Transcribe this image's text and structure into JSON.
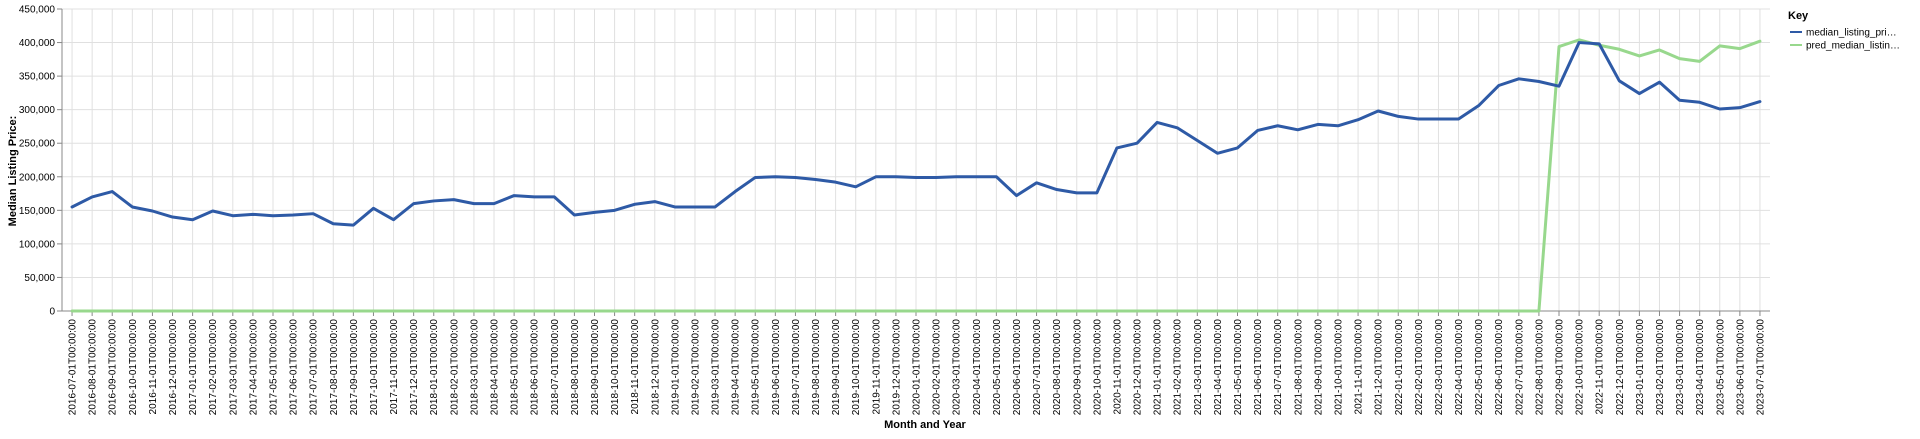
{
  "chart_data": {
    "type": "line",
    "title": "",
    "xlabel": "Month and Year",
    "ylabel": "Median Listing Price:",
    "ylim": [
      0,
      450000
    ],
    "y_ticks": [
      "0",
      "50,000",
      "100,000",
      "150,000",
      "200,000",
      "250,000",
      "300,000",
      "350,000",
      "400,000",
      "450,000"
    ],
    "grid": true,
    "legend": {
      "title": "Key",
      "placement": "top-right",
      "entries": [
        "median_listing_pri…",
        "pred_median_listin…"
      ]
    },
    "x": [
      "2016-07-01T00:00:00",
      "2016-08-01T00:00:00",
      "2016-09-01T00:00:00",
      "2016-10-01T00:00:00",
      "2016-11-01T00:00:00",
      "2016-12-01T00:00:00",
      "2017-01-01T00:00:00",
      "2017-02-01T00:00:00",
      "2017-03-01T00:00:00",
      "2017-04-01T00:00:00",
      "2017-05-01T00:00:00",
      "2017-06-01T00:00:00",
      "2017-07-01T00:00:00",
      "2017-08-01T00:00:00",
      "2017-09-01T00:00:00",
      "2017-10-01T00:00:00",
      "2017-11-01T00:00:00",
      "2017-12-01T00:00:00",
      "2018-01-01T00:00:00",
      "2018-02-01T00:00:00",
      "2018-03-01T00:00:00",
      "2018-04-01T00:00:00",
      "2018-05-01T00:00:00",
      "2018-06-01T00:00:00",
      "2018-07-01T00:00:00",
      "2018-08-01T00:00:00",
      "2018-09-01T00:00:00",
      "2018-10-01T00:00:00",
      "2018-11-01T00:00:00",
      "2018-12-01T00:00:00",
      "2019-01-01T00:00:00",
      "2019-02-01T00:00:00",
      "2019-03-01T00:00:00",
      "2019-04-01T00:00:00",
      "2019-05-01T00:00:00",
      "2019-06-01T00:00:00",
      "2019-07-01T00:00:00",
      "2019-08-01T00:00:00",
      "2019-09-01T00:00:00",
      "2019-10-01T00:00:00",
      "2019-11-01T00:00:00",
      "2019-12-01T00:00:00",
      "2020-01-01T00:00:00",
      "2020-02-01T00:00:00",
      "2020-03-01T00:00:00",
      "2020-04-01T00:00:00",
      "2020-05-01T00:00:00",
      "2020-06-01T00:00:00",
      "2020-07-01T00:00:00",
      "2020-08-01T00:00:00",
      "2020-09-01T00:00:00",
      "2020-10-01T00:00:00",
      "2020-11-01T00:00:00",
      "2020-12-01T00:00:00",
      "2021-01-01T00:00:00",
      "2021-02-01T00:00:00",
      "2021-03-01T00:00:00",
      "2021-04-01T00:00:00",
      "2021-05-01T00:00:00",
      "2021-06-01T00:00:00",
      "2021-07-01T00:00:00",
      "2021-08-01T00:00:00",
      "2021-09-01T00:00:00",
      "2021-10-01T00:00:00",
      "2021-11-01T00:00:00",
      "2021-12-01T00:00:00",
      "2022-01-01T00:00:00",
      "2022-02-01T00:00:00",
      "2022-03-01T00:00:00",
      "2022-04-01T00:00:00",
      "2022-05-01T00:00:00",
      "2022-06-01T00:00:00",
      "2022-07-01T00:00:00",
      "2022-08-01T00:00:00",
      "2022-09-01T00:00:00",
      "2022-10-01T00:00:00",
      "2022-11-01T00:00:00",
      "2022-12-01T00:00:00",
      "2023-01-01T00:00:00",
      "2023-02-01T00:00:00",
      "2023-03-01T00:00:00",
      "2023-04-01T00:00:00",
      "2023-05-01T00:00:00",
      "2023-06-01T00:00:00",
      "2023-07-01T00:00:00"
    ],
    "series": [
      {
        "name": "median_listing_pri…",
        "color": "#2e5aa6",
        "values": [
          155000,
          170000,
          178000,
          155000,
          149000,
          140000,
          136000,
          149000,
          142000,
          144000,
          142000,
          143000,
          145000,
          130000,
          128000,
          153000,
          136000,
          160000,
          164000,
          166000,
          160000,
          160000,
          172000,
          170000,
          170000,
          143000,
          147000,
          150000,
          159000,
          163000,
          155000,
          155000,
          155000,
          178000,
          199000,
          200000,
          199000,
          196000,
          192000,
          185000,
          200000,
          200000,
          199000,
          199000,
          200000,
          200000,
          200000,
          172000,
          191000,
          181000,
          176000,
          176000,
          243000,
          250000,
          281000,
          273000,
          254000,
          235000,
          243000,
          269000,
          276000,
          270000,
          278000,
          276000,
          285000,
          298000,
          290000,
          286000,
          286000,
          286000,
          306000,
          336000,
          346000,
          342000,
          335000,
          400000,
          398000,
          343000,
          324000,
          341000,
          314000,
          311000,
          301000,
          303000,
          312000
        ]
      },
      {
        "name": "pred_median_listin…",
        "color": "#98d88d",
        "values": [
          0,
          0,
          0,
          0,
          0,
          0,
          0,
          0,
          0,
          0,
          0,
          0,
          0,
          0,
          0,
          0,
          0,
          0,
          0,
          0,
          0,
          0,
          0,
          0,
          0,
          0,
          0,
          0,
          0,
          0,
          0,
          0,
          0,
          0,
          0,
          0,
          0,
          0,
          0,
          0,
          0,
          0,
          0,
          0,
          0,
          0,
          0,
          0,
          0,
          0,
          0,
          0,
          0,
          0,
          0,
          0,
          0,
          0,
          0,
          0,
          0,
          0,
          0,
          0,
          0,
          0,
          0,
          0,
          0,
          0,
          0,
          0,
          0,
          0,
          394000,
          404000,
          396000,
          390000,
          380000,
          389000,
          376000,
          372000,
          395000,
          391000,
          402000
        ]
      }
    ]
  }
}
